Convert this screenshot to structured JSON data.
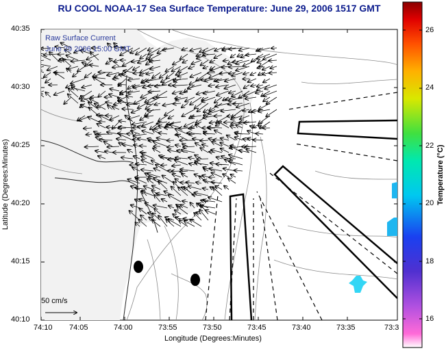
{
  "title": "RU COOL  NOAA-17  Sea Surface Temperature:  June 29, 2006 1517 GMT",
  "overlay": {
    "line1": "Raw Surface Current",
    "line2": "June 29 2006 15:00 GMT"
  },
  "axes": {
    "xlabel": "Longitude (Degrees:Minutes)",
    "ylabel": "Latitude (Degrees:Minutes)",
    "xticks": [
      "74:10",
      "74:05",
      "74:00",
      "73:55",
      "73:50",
      "73:45",
      "73:40",
      "73:35",
      "73:3"
    ],
    "yticks": [
      "40:35",
      "40:30",
      "40:25",
      "40:20",
      "40:15",
      "40:10"
    ]
  },
  "colorbar": {
    "label": "Temperature (°C)",
    "ticks": [
      "26",
      "24",
      "22",
      "20",
      "18",
      "16"
    ],
    "range": [
      15,
      27.5
    ]
  },
  "scale_arrow": {
    "label": "50 cm/s"
  },
  "colors": {
    "title": "#0a1a8c",
    "sst_patch": "#1fb6f0",
    "sst_patch_light": "#33d6f5"
  }
}
